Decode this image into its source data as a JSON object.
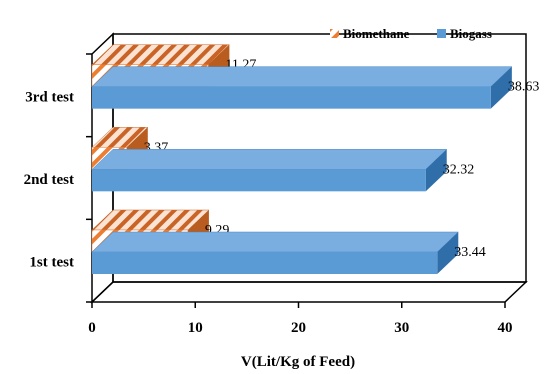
{
  "chart_data": {
    "type": "bar",
    "orientation": "horizontal",
    "three_d": true,
    "categories": [
      "1st test",
      "2nd test",
      "3rd test"
    ],
    "series": [
      {
        "name": "Biomethane",
        "values": [
          9.29,
          3.37,
          11.27
        ],
        "color": "#ED7D31",
        "pattern": "diagonal-hatch"
      },
      {
        "name": "Biogass",
        "values": [
          33.44,
          32.32,
          38.63
        ],
        "color": "#5B9BD5",
        "pattern": "solid"
      }
    ],
    "xlabel": "V(Lit/Kg  of Feed)",
    "ylabel": "",
    "xlim": [
      0,
      40
    ],
    "xticks": [
      0,
      10,
      20,
      30,
      40
    ],
    "grid": false,
    "legend": "top-right",
    "data_labels": true
  }
}
